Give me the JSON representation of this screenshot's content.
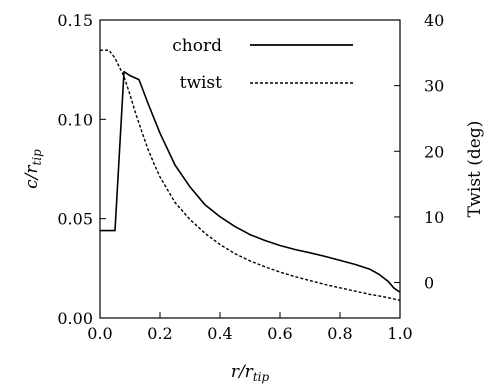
{
  "chart_data": {
    "type": "line",
    "x": [
      0.0,
      0.05,
      0.08,
      0.1,
      0.12,
      0.14,
      0.16,
      0.18,
      0.2,
      0.25,
      0.3,
      0.35,
      0.4,
      0.45,
      0.5,
      0.55,
      0.6,
      0.65,
      0.7,
      0.75,
      0.8,
      0.85,
      0.9,
      0.93,
      0.96,
      0.98,
      1.0
    ],
    "series": [
      {
        "name": "chord",
        "axis": "left",
        "style": "solid",
        "x": [
          0.0,
          0.05,
          0.08,
          0.1,
          0.13,
          0.16,
          0.2,
          0.25,
          0.3,
          0.35,
          0.4,
          0.45,
          0.5,
          0.55,
          0.6,
          0.65,
          0.7,
          0.75,
          0.8,
          0.85,
          0.9,
          0.93,
          0.96,
          0.98,
          1.0
        ],
        "values": [
          0.044,
          0.044,
          0.124,
          0.122,
          0.12,
          0.108,
          0.093,
          0.077,
          0.066,
          0.057,
          0.051,
          0.046,
          0.042,
          0.039,
          0.0365,
          0.0345,
          0.0328,
          0.031,
          0.029,
          0.027,
          0.0245,
          0.022,
          0.0185,
          0.015,
          0.013
        ]
      },
      {
        "name": "twist",
        "axis": "right",
        "style": "dashed",
        "x": [
          0.0,
          0.03,
          0.05,
          0.08,
          0.1,
          0.12,
          0.14,
          0.16,
          0.18,
          0.2,
          0.25,
          0.3,
          0.35,
          0.4,
          0.45,
          0.5,
          0.55,
          0.6,
          0.65,
          0.7,
          0.75,
          0.8,
          0.85,
          0.9,
          0.95,
          1.0
        ],
        "values": [
          35.4,
          35.4,
          34.2,
          31.4,
          28.6,
          25.6,
          22.9,
          20.3,
          18.1,
          16.1,
          12.2,
          9.6,
          7.5,
          5.8,
          4.4,
          3.3,
          2.4,
          1.6,
          0.9,
          0.3,
          -0.3,
          -0.8,
          -1.3,
          -1.8,
          -2.2,
          -2.7
        ]
      }
    ],
    "xlabel": "r/r",
    "xlabel_sub": "tip",
    "ylabel": "c/r",
    "ylabel_sub": "tip",
    "y2label": "Twist (deg)",
    "xlim": [
      0.0,
      1.0
    ],
    "ylim": [
      0.0,
      0.15
    ],
    "y2lim": [
      -5.4,
      40.0
    ],
    "xticks": [
      "0.0",
      "0.2",
      "0.4",
      "0.6",
      "0.8",
      "1.0"
    ],
    "yticks": [
      "0.00",
      "0.05",
      "0.10",
      "0.15"
    ],
    "y2ticks": [
      "0",
      "10",
      "20",
      "30",
      "40"
    ],
    "legend": {
      "position": "top-right",
      "entries": [
        "chord",
        "twist"
      ]
    },
    "grid": false
  }
}
